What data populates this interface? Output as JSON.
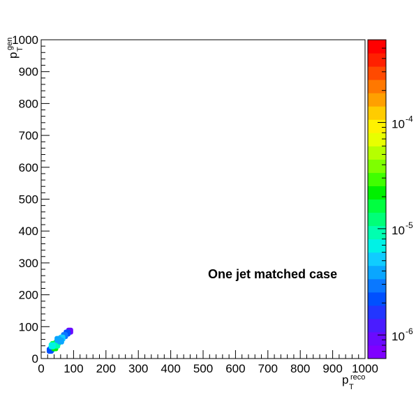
{
  "chart_data": {
    "type": "heatmap",
    "annotation": "One jet matched case",
    "xaxis": {
      "label_main": "p",
      "label_sub": "T",
      "label_sup": "reco",
      "range": [
        0,
        1000
      ],
      "ticks": [
        "0",
        "100",
        "200",
        "300",
        "400",
        "500",
        "600",
        "700",
        "800",
        "900",
        "1000"
      ]
    },
    "yaxis": {
      "label_main": "p",
      "label_sub": "T",
      "label_sup": "gen",
      "range": [
        0,
        1000
      ],
      "ticks": [
        "0",
        "100",
        "200",
        "300",
        "400",
        "500",
        "600",
        "700",
        "800",
        "900",
        "1000"
      ]
    },
    "colorbar": {
      "scale": "log",
      "range": [
        6e-07,
        0.0006
      ],
      "tick_labels": [
        {
          "base": "10",
          "exp": "-6",
          "value": 1e-06
        },
        {
          "base": "10",
          "exp": "-5",
          "value": 1e-05
        },
        {
          "base": "10",
          "exp": "-4",
          "value": 0.0001
        }
      ],
      "colors": [
        "#7f00ff",
        "#6a0aff",
        "#4a1cff",
        "#2236ff",
        "#0050ff",
        "#0a78ff",
        "#0aa6ff",
        "#10ccff",
        "#00f2e6",
        "#00ffb0",
        "#00ff78",
        "#00ff40",
        "#00f000",
        "#40ff00",
        "#7eff00",
        "#b6ff00",
        "#e8ff00",
        "#fff200",
        "#ffcc00",
        "#ffa000",
        "#ff7800",
        "#ff4a00",
        "#ff2000",
        "#ff0000"
      ]
    },
    "cells": [
      {
        "x": 88,
        "y": 86,
        "z": 1e-06
      },
      {
        "x": 80,
        "y": 80,
        "z": 2e-06
      },
      {
        "x": 72,
        "y": 72,
        "z": 3e-06
      },
      {
        "x": 64,
        "y": 64,
        "z": 5e-06
      },
      {
        "x": 56,
        "y": 56,
        "z": 8e-06
      },
      {
        "x": 50,
        "y": 50,
        "z": 1.5e-05
      },
      {
        "x": 45,
        "y": 45,
        "z": 2.5e-05
      },
      {
        "x": 40,
        "y": 40,
        "z": 4e-05
      },
      {
        "x": 36,
        "y": 36,
        "z": 1.2e-05
      },
      {
        "x": 32,
        "y": 30,
        "z": 5e-06
      },
      {
        "x": 28,
        "y": 26,
        "z": 2e-06
      },
      {
        "x": 42,
        "y": 34,
        "z": 2e-05
      },
      {
        "x": 38,
        "y": 44,
        "z": 1.5e-05
      },
      {
        "x": 48,
        "y": 42,
        "z": 1e-05
      },
      {
        "x": 34,
        "y": 40,
        "z": 6e-06
      },
      {
        "x": 60,
        "y": 55,
        "z": 4e-06
      },
      {
        "x": 52,
        "y": 60,
        "z": 4e-06
      }
    ]
  }
}
